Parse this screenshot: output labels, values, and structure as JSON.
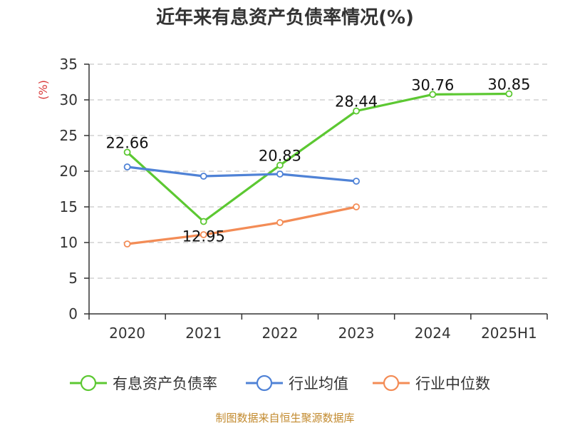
{
  "chart_data": {
    "type": "line",
    "title": "近年来有息资产负债率情况(%)",
    "ylabel": "(%)",
    "xlabel": "",
    "categories": [
      "2020",
      "2021",
      "2022",
      "2023",
      "2024",
      "2025H1"
    ],
    "ylim": [
      0,
      35
    ],
    "yticks": [
      0,
      5,
      10,
      15,
      20,
      25,
      30,
      35
    ],
    "grid": true,
    "legend_position": "bottom",
    "series": [
      {
        "name": "有息资产负债率",
        "color": "#5cc832",
        "values": [
          22.66,
          12.95,
          20.83,
          28.44,
          30.76,
          30.85
        ],
        "labels": [
          "22.66",
          "12.95",
          "20.83",
          "28.44",
          "30.76",
          "30.85"
        ]
      },
      {
        "name": "行业均值",
        "color": "#4f82d6",
        "values": [
          20.6,
          19.3,
          19.6,
          18.6,
          null,
          null
        ]
      },
      {
        "name": "行业中位数",
        "color": "#f38c56",
        "values": [
          9.8,
          11.1,
          12.8,
          15.0,
          null,
          null
        ]
      }
    ]
  },
  "source": "制图数据来自恒生聚源数据库"
}
